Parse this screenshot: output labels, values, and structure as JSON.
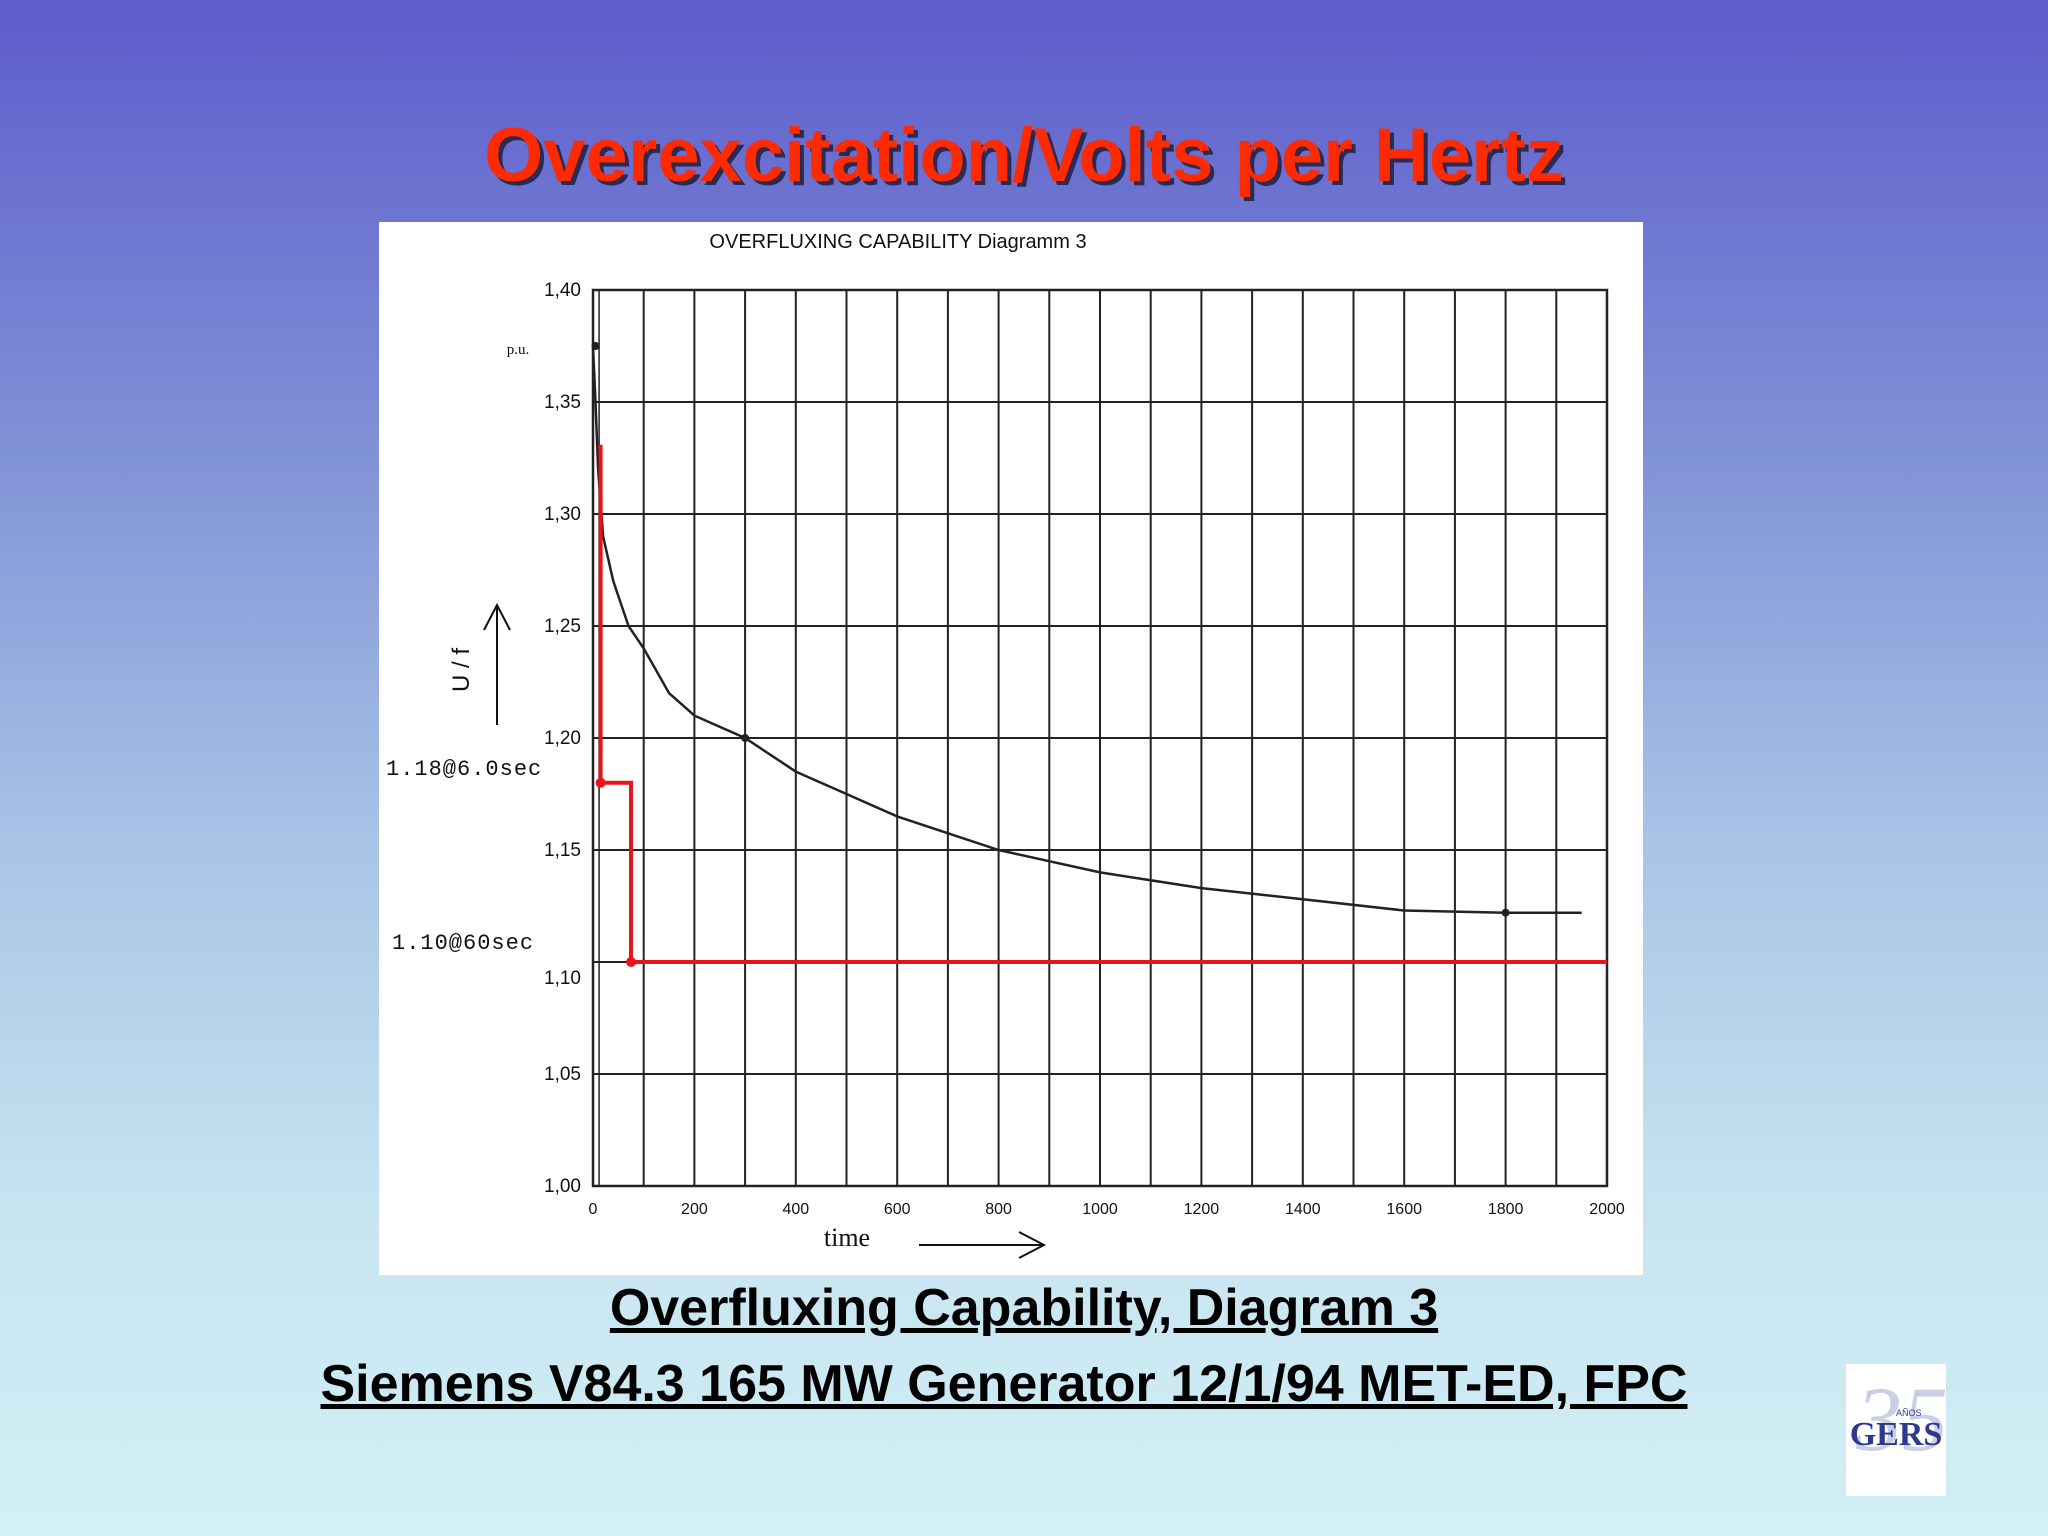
{
  "slide": {
    "title": "Overexcitation/Volts per Hertz",
    "caption_line1": "Overfluxing Capability, Diagram 3",
    "caption_line2": "Siemens V84.3 165 MW Generator 12/1/94 MET-ED, FPC"
  },
  "logo": {
    "number": "35",
    "sub": "AÑOS",
    "brand": "GERS"
  },
  "colors": {
    "title": "#ff2a00",
    "setting_line": "#e8141b",
    "curve": "#222222"
  },
  "chart_data": {
    "type": "line",
    "title": "OVERFLUXING CAPABILITY Diagramm 3",
    "xlabel": "time",
    "ylabel": "U / f",
    "y_unit": "p.u.",
    "xlim": [
      0,
      2000
    ],
    "ylim": [
      1.0,
      1.4
    ],
    "x_ticks": [
      0,
      200,
      400,
      600,
      800,
      1000,
      1200,
      1400,
      1600,
      1800,
      2000
    ],
    "x_tick_labels": [
      "0",
      "200",
      "400",
      "600",
      "800",
      "1000",
      "1200",
      "1400",
      "1600",
      "1800",
      "2000"
    ],
    "y_ticks": [
      1.0,
      1.05,
      1.1,
      1.15,
      1.2,
      1.25,
      1.3,
      1.35,
      1.4
    ],
    "y_tick_labels": [
      "1,00",
      "1,05",
      "1,10",
      "1,15",
      "1,20",
      "1,25",
      "1,30",
      "1,35",
      "1,40"
    ],
    "grid": true,
    "series": [
      {
        "kind": "capability",
        "x": [
          0,
          5,
          10,
          20,
          40,
          70,
          100,
          150,
          200,
          300,
          400,
          500,
          600,
          800,
          1000,
          1200,
          1400,
          1600,
          1800,
          1950
        ],
        "y": [
          1.375,
          1.35,
          1.32,
          1.29,
          1.27,
          1.25,
          1.24,
          1.22,
          1.21,
          1.2,
          1.185,
          1.175,
          1.165,
          1.15,
          1.14,
          1.133,
          1.128,
          1.123,
          1.122,
          1.122
        ]
      },
      {
        "kind": "setting",
        "x": [
          10,
          15,
          15,
          75,
          75,
          2000
        ],
        "y": [
          1.33,
          1.33,
          1.18,
          1.18,
          1.1,
          1.1
        ]
      }
    ],
    "annotations": [
      "1.18@6.0sec",
      "1.10@60sec"
    ]
  }
}
